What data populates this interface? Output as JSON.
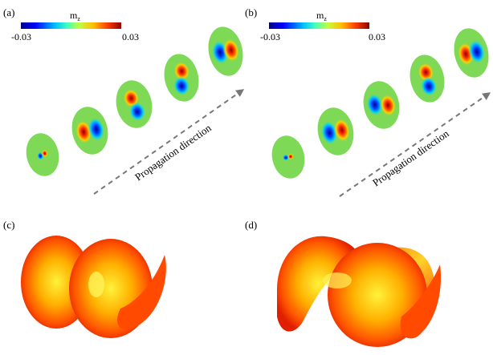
{
  "figure": {
    "panels": [
      {
        "label": "(a)",
        "colorbar": {
          "title_main": "m",
          "title_sub": "z",
          "min_label": "-0.03",
          "max_label": "0.03"
        },
        "arrow_text": "Propagation direction",
        "disk_count": 5
      },
      {
        "label": "(b)",
        "colorbar": {
          "title_main": "m",
          "title_sub": "z",
          "min_label": "-0.03",
          "max_label": "0.03"
        },
        "arrow_text": "Propagation direction",
        "disk_count": 5
      },
      {
        "label": "(c)"
      },
      {
        "label": "(d)"
      }
    ],
    "colormap": [
      "#00008f",
      "#0000ff",
      "#00bfff",
      "#40ffbf",
      "#bfff40",
      "#ffbf00",
      "#ff4000",
      "#8f0000"
    ],
    "disk_background_color": "#7ed957",
    "surface_colors": [
      "#fff23a",
      "#ffb000",
      "#ff5500",
      "#e01e00"
    ]
  }
}
